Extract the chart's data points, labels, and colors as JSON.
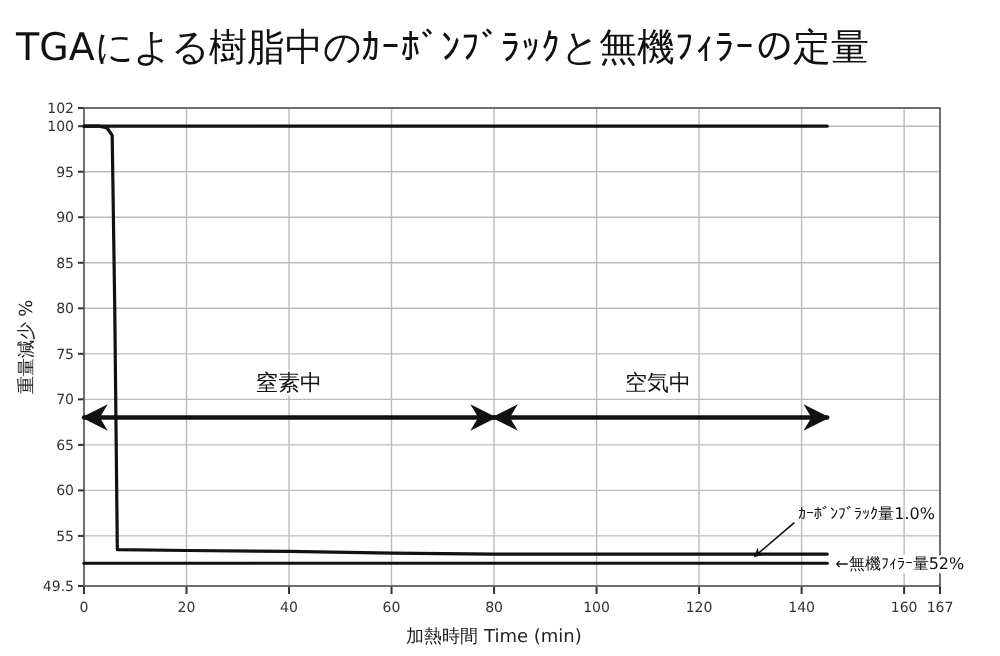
{
  "chart_data": {
    "type": "line",
    "title": "TGAによる樹脂中のｶｰﾎﾞﾝﾌﾞﾗｯｸと無機ﾌｨﾗｰの定量",
    "xlabel": "加熱時間  Time (min)",
    "ylabel": "重量減少 %",
    "series": [
      {
        "color": "#111111",
        "x": [
          0,
          3,
          4.5,
          5.5,
          6,
          6.5,
          20,
          40,
          60,
          80,
          100,
          120,
          145
        ],
        "values": [
          100,
          100,
          99.8,
          99,
          80,
          53.5,
          53.4,
          53.3,
          53.1,
          53,
          53,
          53,
          53
        ]
      },
      {
        "color": "#111111",
        "x": [
          0,
          145
        ],
        "values": [
          100,
          100
        ]
      },
      {
        "color": "#111111",
        "x": [
          0,
          145
        ],
        "values": [
          52,
          52
        ]
      },
      {
        "color": "#111111",
        "x": [
          0,
          80
        ],
        "values": [
          68,
          68
        ]
      },
      {
        "color": "#111111",
        "x": [
          80,
          145
        ],
        "values": [
          68,
          68
        ]
      }
    ],
    "annotations": [
      {
        "text": "ｶｰﾎﾞﾝﾌﾞﾗｯｸ量1.0%",
        "x": 130,
        "y": 52.5
      },
      {
        "text": "←無機ﾌｨﾗｰ量52%",
        "x": 145,
        "y": 52
      },
      {
        "text": "窒素中",
        "x": 40,
        "y": 68
      },
      {
        "text": "空気中",
        "x": 112,
        "y": 68
      }
    ],
    "xlim": [
      0,
      167
    ],
    "xticks": [
      0,
      20,
      40,
      60,
      80,
      100,
      120,
      140,
      160,
      167
    ],
    "ylim": [
      49.5,
      102
    ],
    "yticks": [
      49.5,
      55,
      60,
      65,
      70,
      75,
      80,
      85,
      90,
      95,
      100,
      102
    ],
    "grid": true,
    "marker": "none",
    "line_style": "solid"
  }
}
